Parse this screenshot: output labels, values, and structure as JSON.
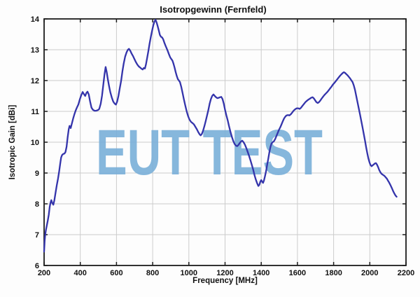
{
  "chart": {
    "title": "Isotropgewinn (Fernfeld)",
    "xlabel": "Frequency [MHz]",
    "ylabel": "Isotropic Gain [dBi]",
    "watermark_text": "EUT TEST"
  },
  "chart_data": {
    "type": "line",
    "title": "Isotropgewinn (Fernfeld)",
    "xlabel": "Frequency [MHz]",
    "ylabel": "Isotropic Gain [dBi]",
    "xlim": [
      200,
      2200
    ],
    "ylim": [
      6,
      14
    ],
    "xticks": [
      200,
      400,
      600,
      800,
      1000,
      1200,
      1400,
      1600,
      1800,
      2000,
      2200
    ],
    "yticks": [
      6,
      7,
      8,
      9,
      10,
      11,
      12,
      13,
      14
    ],
    "grid": true,
    "legend": "none",
    "colors": {
      "line": "#3434ab",
      "grid": "#cccccc",
      "frame": "#1c1c1c",
      "text": "#111111",
      "watermark": "#7ab0d9"
    },
    "watermark": {
      "text": "EUT TEST",
      "color": "#7ab0d9"
    },
    "series": [
      {
        "points": [
          [
            200,
            6.45
          ],
          [
            203,
            6.8
          ],
          [
            206,
            7.0
          ],
          [
            210,
            7.15
          ],
          [
            215,
            7.3
          ],
          [
            220,
            7.45
          ],
          [
            226,
            7.65
          ],
          [
            231,
            7.9
          ],
          [
            236,
            8.05
          ],
          [
            240,
            8.12
          ],
          [
            245,
            8.03
          ],
          [
            251,
            7.97
          ],
          [
            257,
            8.12
          ],
          [
            263,
            8.35
          ],
          [
            270,
            8.6
          ],
          [
            277,
            8.82
          ],
          [
            283,
            9.05
          ],
          [
            289,
            9.3
          ],
          [
            294,
            9.5
          ],
          [
            299,
            9.58
          ],
          [
            306,
            9.62
          ],
          [
            312,
            9.63
          ],
          [
            318,
            9.68
          ],
          [
            324,
            9.85
          ],
          [
            330,
            10.15
          ],
          [
            336,
            10.42
          ],
          [
            341,
            10.53
          ],
          [
            347,
            10.46
          ],
          [
            353,
            10.6
          ],
          [
            360,
            10.76
          ],
          [
            367,
            10.9
          ],
          [
            374,
            11.02
          ],
          [
            381,
            11.12
          ],
          [
            389,
            11.22
          ],
          [
            397,
            11.38
          ],
          [
            405,
            11.52
          ],
          [
            413,
            11.63
          ],
          [
            420,
            11.56
          ],
          [
            427,
            11.5
          ],
          [
            434,
            11.6
          ],
          [
            440,
            11.64
          ],
          [
            447,
            11.55
          ],
          [
            454,
            11.32
          ],
          [
            462,
            11.12
          ],
          [
            470,
            11.05
          ],
          [
            479,
            11.02
          ],
          [
            488,
            11.02
          ],
          [
            497,
            11.04
          ],
          [
            505,
            11.08
          ],
          [
            513,
            11.25
          ],
          [
            520,
            11.5
          ],
          [
            527,
            11.85
          ],
          [
            534,
            12.2
          ],
          [
            540,
            12.44
          ],
          [
            546,
            12.28
          ],
          [
            552,
            12.05
          ],
          [
            559,
            11.82
          ],
          [
            566,
            11.62
          ],
          [
            574,
            11.45
          ],
          [
            582,
            11.32
          ],
          [
            590,
            11.25
          ],
          [
            597,
            11.22
          ],
          [
            604,
            11.32
          ],
          [
            611,
            11.5
          ],
          [
            618,
            11.75
          ],
          [
            626,
            12.0
          ],
          [
            633,
            12.3
          ],
          [
            640,
            12.55
          ],
          [
            648,
            12.78
          ],
          [
            656,
            12.92
          ],
          [
            663,
            13.0
          ],
          [
            669,
            13.03
          ],
          [
            676,
            12.97
          ],
          [
            683,
            12.88
          ],
          [
            691,
            12.8
          ],
          [
            699,
            12.7
          ],
          [
            707,
            12.6
          ],
          [
            715,
            12.52
          ],
          [
            723,
            12.46
          ],
          [
            731,
            12.42
          ],
          [
            739,
            12.38
          ],
          [
            745,
            12.36
          ],
          [
            751,
            12.41
          ],
          [
            757,
            12.39
          ],
          [
            763,
            12.52
          ],
          [
            769,
            12.72
          ],
          [
            776,
            12.95
          ],
          [
            783,
            13.2
          ],
          [
            790,
            13.42
          ],
          [
            797,
            13.62
          ],
          [
            804,
            13.8
          ],
          [
            810,
            13.92
          ],
          [
            816,
            13.97
          ],
          [
            822,
            13.88
          ],
          [
            828,
            13.76
          ],
          [
            834,
            13.62
          ],
          [
            840,
            13.48
          ],
          [
            846,
            13.42
          ],
          [
            852,
            13.4
          ],
          [
            858,
            13.34
          ],
          [
            864,
            13.24
          ],
          [
            871,
            13.13
          ],
          [
            877,
            13.05
          ],
          [
            884,
            12.95
          ],
          [
            890,
            12.85
          ],
          [
            897,
            12.75
          ],
          [
            903,
            12.7
          ],
          [
            909,
            12.65
          ],
          [
            915,
            12.55
          ],
          [
            921,
            12.42
          ],
          [
            927,
            12.28
          ],
          [
            933,
            12.15
          ],
          [
            939,
            12.05
          ],
          [
            945,
            12.0
          ],
          [
            951,
            11.95
          ],
          [
            958,
            11.8
          ],
          [
            965,
            11.6
          ],
          [
            972,
            11.4
          ],
          [
            980,
            11.2
          ],
          [
            988,
            11.0
          ],
          [
            996,
            10.84
          ],
          [
            1004,
            10.73
          ],
          [
            1012,
            10.66
          ],
          [
            1020,
            10.62
          ],
          [
            1028,
            10.58
          ],
          [
            1036,
            10.5
          ],
          [
            1044,
            10.42
          ],
          [
            1052,
            10.33
          ],
          [
            1059,
            10.26
          ],
          [
            1065,
            10.22
          ],
          [
            1072,
            10.27
          ],
          [
            1079,
            10.38
          ],
          [
            1086,
            10.52
          ],
          [
            1093,
            10.68
          ],
          [
            1100,
            10.85
          ],
          [
            1108,
            11.05
          ],
          [
            1115,
            11.25
          ],
          [
            1122,
            11.4
          ],
          [
            1129,
            11.5
          ],
          [
            1136,
            11.55
          ],
          [
            1143,
            11.5
          ],
          [
            1150,
            11.46
          ],
          [
            1157,
            11.43
          ],
          [
            1165,
            11.44
          ],
          [
            1172,
            11.46
          ],
          [
            1179,
            11.47
          ],
          [
            1186,
            11.4
          ],
          [
            1193,
            11.25
          ],
          [
            1200,
            11.05
          ],
          [
            1207,
            10.88
          ],
          [
            1215,
            10.7
          ],
          [
            1222,
            10.52
          ],
          [
            1230,
            10.33
          ],
          [
            1238,
            10.17
          ],
          [
            1246,
            10.03
          ],
          [
            1253,
            9.94
          ],
          [
            1260,
            9.89
          ],
          [
            1267,
            9.87
          ],
          [
            1274,
            9.91
          ],
          [
            1281,
            9.97
          ],
          [
            1288,
            10.02
          ],
          [
            1295,
            10.05
          ],
          [
            1302,
            10.0
          ],
          [
            1309,
            9.93
          ],
          [
            1317,
            9.82
          ],
          [
            1324,
            9.7
          ],
          [
            1332,
            9.57
          ],
          [
            1340,
            9.42
          ],
          [
            1348,
            9.26
          ],
          [
            1356,
            9.1
          ],
          [
            1363,
            8.93
          ],
          [
            1370,
            8.79
          ],
          [
            1377,
            8.67
          ],
          [
            1384,
            8.58
          ],
          [
            1390,
            8.62
          ],
          [
            1395,
            8.72
          ],
          [
            1400,
            8.77
          ],
          [
            1405,
            8.72
          ],
          [
            1410,
            8.68
          ],
          [
            1415,
            8.76
          ],
          [
            1421,
            8.9
          ],
          [
            1427,
            9.07
          ],
          [
            1433,
            9.27
          ],
          [
            1439,
            9.47
          ],
          [
            1445,
            9.67
          ],
          [
            1451,
            9.85
          ],
          [
            1457,
            9.96
          ],
          [
            1463,
            10.0
          ],
          [
            1470,
            10.03
          ],
          [
            1477,
            10.1
          ],
          [
            1484,
            10.2
          ],
          [
            1491,
            10.3
          ],
          [
            1498,
            10.4
          ],
          [
            1505,
            10.48
          ],
          [
            1512,
            10.58
          ],
          [
            1519,
            10.68
          ],
          [
            1526,
            10.77
          ],
          [
            1533,
            10.83
          ],
          [
            1540,
            10.87
          ],
          [
            1548,
            10.88
          ],
          [
            1556,
            10.87
          ],
          [
            1564,
            10.91
          ],
          [
            1572,
            10.97
          ],
          [
            1580,
            11.03
          ],
          [
            1588,
            11.07
          ],
          [
            1596,
            11.1
          ],
          [
            1604,
            11.1
          ],
          [
            1612,
            11.08
          ],
          [
            1620,
            11.12
          ],
          [
            1628,
            11.18
          ],
          [
            1636,
            11.24
          ],
          [
            1644,
            11.3
          ],
          [
            1652,
            11.34
          ],
          [
            1660,
            11.38
          ],
          [
            1668,
            11.41
          ],
          [
            1676,
            11.44
          ],
          [
            1684,
            11.46
          ],
          [
            1691,
            11.42
          ],
          [
            1698,
            11.36
          ],
          [
            1705,
            11.3
          ],
          [
            1712,
            11.27
          ],
          [
            1719,
            11.3
          ],
          [
            1726,
            11.35
          ],
          [
            1733,
            11.41
          ],
          [
            1741,
            11.47
          ],
          [
            1749,
            11.53
          ],
          [
            1757,
            11.58
          ],
          [
            1765,
            11.63
          ],
          [
            1772,
            11.68
          ],
          [
            1780,
            11.74
          ],
          [
            1788,
            11.8
          ],
          [
            1796,
            11.87
          ],
          [
            1804,
            11.92
          ],
          [
            1812,
            11.98
          ],
          [
            1820,
            12.04
          ],
          [
            1828,
            12.1
          ],
          [
            1836,
            12.16
          ],
          [
            1844,
            12.21
          ],
          [
            1851,
            12.25
          ],
          [
            1857,
            12.27
          ],
          [
            1863,
            12.25
          ],
          [
            1870,
            12.21
          ],
          [
            1877,
            12.17
          ],
          [
            1884,
            12.12
          ],
          [
            1891,
            12.07
          ],
          [
            1898,
            12.01
          ],
          [
            1905,
            11.95
          ],
          [
            1911,
            11.85
          ],
          [
            1918,
            11.7
          ],
          [
            1925,
            11.5
          ],
          [
            1932,
            11.3
          ],
          [
            1939,
            11.1
          ],
          [
            1946,
            10.9
          ],
          [
            1953,
            10.68
          ],
          [
            1960,
            10.47
          ],
          [
            1967,
            10.25
          ],
          [
            1974,
            10.03
          ],
          [
            1980,
            9.83
          ],
          [
            1986,
            9.64
          ],
          [
            1992,
            9.48
          ],
          [
            1998,
            9.35
          ],
          [
            2004,
            9.26
          ],
          [
            2010,
            9.22
          ],
          [
            2016,
            9.25
          ],
          [
            2022,
            9.28
          ],
          [
            2028,
            9.31
          ],
          [
            2034,
            9.32
          ],
          [
            2040,
            9.27
          ],
          [
            2046,
            9.19
          ],
          [
            2052,
            9.1
          ],
          [
            2058,
            9.03
          ],
          [
            2064,
            8.98
          ],
          [
            2070,
            8.95
          ],
          [
            2076,
            8.93
          ],
          [
            2082,
            8.9
          ],
          [
            2088,
            8.86
          ],
          [
            2094,
            8.82
          ],
          [
            2100,
            8.76
          ],
          [
            2106,
            8.7
          ],
          [
            2112,
            8.63
          ],
          [
            2118,
            8.56
          ],
          [
            2124,
            8.48
          ],
          [
            2130,
            8.4
          ],
          [
            2136,
            8.33
          ],
          [
            2142,
            8.27
          ],
          [
            2148,
            8.23
          ]
        ]
      }
    ]
  }
}
